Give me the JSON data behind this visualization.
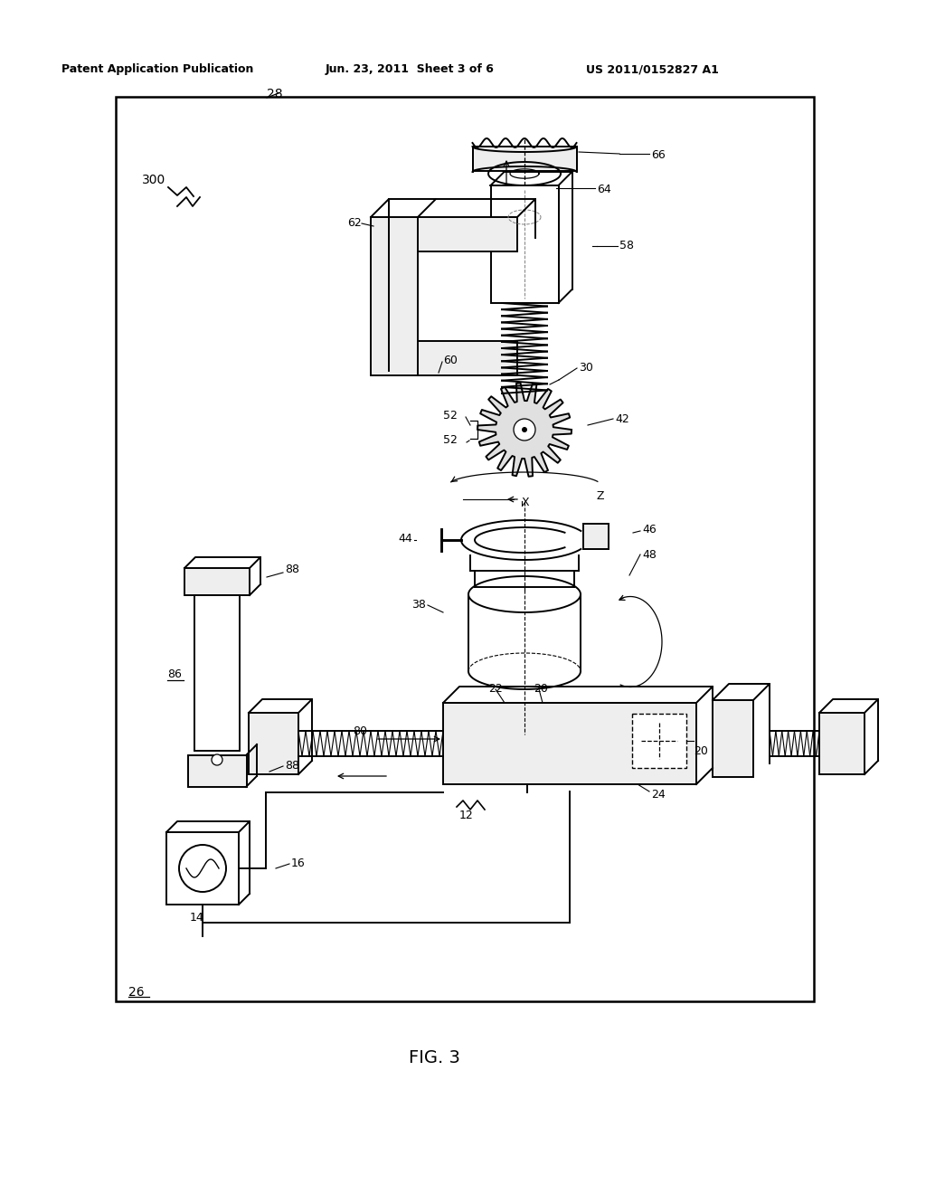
{
  "background_color": "#ffffff",
  "header_left": "Patent Application Publication",
  "header_center": "Jun. 23, 2011  Sheet 3 of 6",
  "header_right": "US 2011/0152827 A1",
  "caption": "FIG. 3"
}
